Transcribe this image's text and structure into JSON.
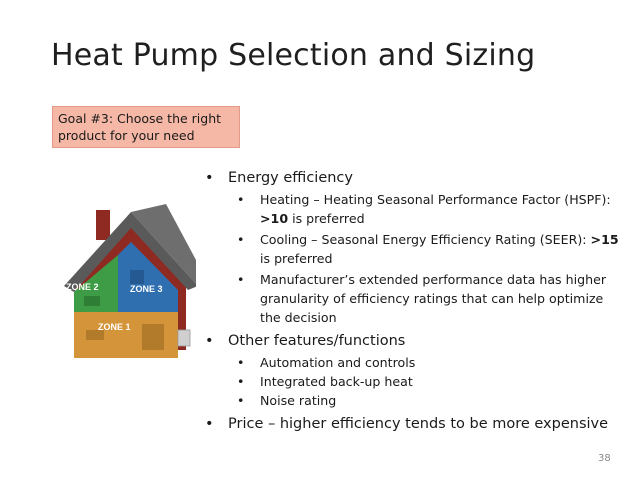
{
  "slide": {
    "title": "Heat Pump Selection and Sizing",
    "goal": "Goal #3: Choose the right product for your need",
    "page_number": "38"
  },
  "image": {
    "zone_labels": [
      "ZONE 2",
      "ZONE 3",
      "ZONE 1"
    ],
    "colors": {
      "zone1": "#d4953a",
      "zone2": "#3d9c45",
      "zone3": "#2f6fb0",
      "roof": "#5a5a5a",
      "wall": "#8e2a22"
    }
  },
  "bullet_glyph": "•",
  "bullets": {
    "energy": {
      "label": "Energy efficiency",
      "heating_prefix": "Heating – Heating Seasonal Performance Factor (HSPF): ",
      "heating_value": ">10",
      "heating_suffix": " is preferred",
      "cooling_prefix": "Cooling – Seasonal Energy Efficiency Rating (SEER): ",
      "cooling_value": ">15",
      "cooling_suffix": " is preferred",
      "manufacturer": "Manufacturer’s extended performance data has higher granularity of efficiency ratings that can help optimize the decision"
    },
    "features": {
      "label": "Other features/functions",
      "items": [
        "Automation and controls",
        "Integrated back-up heat",
        "Noise rating"
      ]
    },
    "price": "Price – higher efficiency tends to be more expensive"
  }
}
